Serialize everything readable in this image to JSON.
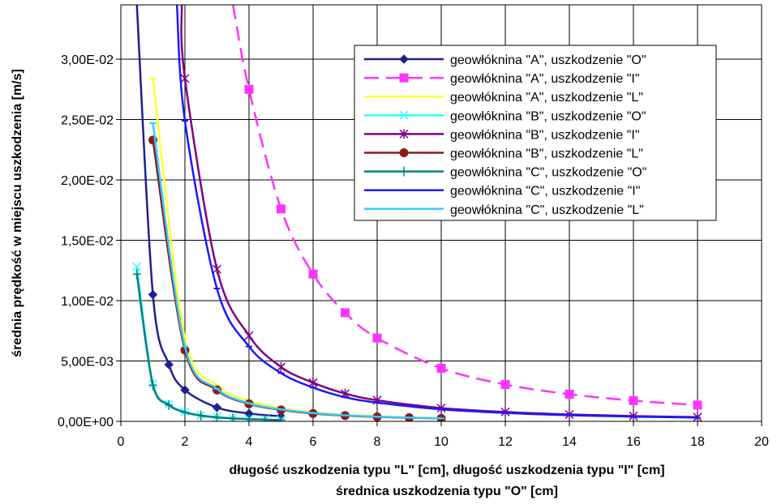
{
  "chart_data": {
    "type": "line",
    "xlabel_line1": "długość uszkodzenia typu \"L\" [cm], długość uszkodzenia typu \"I\" [cm]",
    "xlabel_line2": "średnica uszkodzenia typu \"O\" [cm]",
    "ylabel": "średnia prędkość w miejscu uszkodzenia [m/s]",
    "xlim": [
      0,
      20
    ],
    "ylim": [
      0,
      0.0345
    ],
    "x_ticks": [
      0,
      2,
      4,
      6,
      8,
      10,
      12,
      14,
      16,
      18,
      20
    ],
    "x_tick_labels": [
      "0",
      "2",
      "4",
      "6",
      "8",
      "10",
      "12",
      "14",
      "16",
      "18",
      "20"
    ],
    "y_ticks": [
      0,
      0.005,
      0.01,
      0.015,
      0.02,
      0.025,
      0.03
    ],
    "y_tick_labels": [
      "0,00E+00",
      "5,00E-03",
      "1,00E-02",
      "1,50E-02",
      "2,00E-02",
      "2,50E-02",
      "3,00E-02"
    ],
    "grid": true,
    "legend_position": "top-right",
    "series": [
      {
        "name": "geowłóknina \"A\", uszkodzenie \"O\"",
        "color": "#1f1f8f",
        "dash": "solid",
        "marker": "diamond",
        "x": [
          0.5,
          1,
          1.5,
          2,
          3,
          4,
          5
        ],
        "y": [
          0.0345,
          0.0105,
          0.0047,
          0.0026,
          0.00115,
          0.00065,
          0.00042
        ]
      },
      {
        "name": "geowłóknina \"A\", uszkodzenie \"I\"",
        "color": "#ff33ff",
        "dash": "dashed",
        "marker": "square",
        "x": [
          3.5,
          4,
          5,
          6,
          7,
          8,
          10,
          12,
          14,
          16,
          18
        ],
        "y": [
          0.0345,
          0.0275,
          0.0176,
          0.0122,
          0.009,
          0.0069,
          0.0044,
          0.00305,
          0.00225,
          0.00172,
          0.00135
        ]
      },
      {
        "name": "geowłóknina \"A\", uszkodzenie \"L\"",
        "color": "#ffff33",
        "dash": "solid",
        "marker": "dash",
        "x": [
          1,
          2,
          3,
          4,
          5,
          6,
          7,
          8,
          9,
          10
        ],
        "y": [
          0.0284,
          0.0069,
          0.003,
          0.0017,
          0.0011,
          0.00075,
          0.00055,
          0.00042,
          0.00033,
          0.00027
        ]
      },
      {
        "name": "geowłóknina \"B\", uszkodzenie \"O\"",
        "color": "#33ffff",
        "dash": "solid",
        "marker": "x",
        "x": [
          0.5,
          1,
          1.5,
          2,
          2.5,
          3,
          3.5,
          4,
          4.5,
          5
        ],
        "y": [
          0.0128,
          0.0031,
          0.0014,
          0.00078,
          0.0005,
          0.00035,
          0.00026,
          0.0002,
          0.00015,
          0.00012
        ]
      },
      {
        "name": "geowłóknina \"B\", uszkodzenie \"I\"",
        "color": "#800080",
        "dash": "solid",
        "marker": "star",
        "x": [
          1.9,
          2,
          3,
          4,
          5,
          6,
          7,
          8,
          10,
          12,
          14,
          16,
          18
        ],
        "y": [
          0.0345,
          0.0284,
          0.0126,
          0.0071,
          0.0045,
          0.0032,
          0.0023,
          0.00175,
          0.0011,
          0.00078,
          0.00057,
          0.00044,
          0.00035
        ]
      },
      {
        "name": "geowłóknina \"B\", uszkodzenie \"L\"",
        "color": "#8b1a1a",
        "dash": "solid",
        "marker": "circle",
        "x": [
          1,
          2,
          3,
          4,
          5,
          6,
          7,
          8,
          9,
          10
        ],
        "y": [
          0.0233,
          0.0059,
          0.0026,
          0.00145,
          0.00095,
          0.00065,
          0.00048,
          0.00037,
          0.0003,
          0.00024
        ]
      },
      {
        "name": "geowłóknina \"C\", uszkodzenie \"O\"",
        "color": "#008080",
        "dash": "solid",
        "marker": "plus",
        "x": [
          0.5,
          1,
          1.5,
          2,
          2.5,
          3,
          3.5,
          4,
          4.5,
          5
        ],
        "y": [
          0.0122,
          0.003,
          0.00135,
          0.00075,
          0.00048,
          0.00033,
          0.00024,
          0.00018,
          0.00014,
          0.00011
        ]
      },
      {
        "name": "geowłóknina \"C\", uszkodzenie \"I\"",
        "color": "#1a1aff",
        "dash": "solid",
        "marker": "dash",
        "x": [
          1.75,
          2,
          3,
          4,
          5,
          6,
          7,
          8,
          10,
          12,
          14,
          16,
          18
        ],
        "y": [
          0.0345,
          0.0249,
          0.011,
          0.0062,
          0.004,
          0.0028,
          0.002,
          0.00155,
          0.001,
          0.0007,
          0.00051,
          0.00039,
          0.00031
        ]
      },
      {
        "name": "geowłóknina \"C\", uszkodzenie \"L\"",
        "color": "#33ccff",
        "dash": "solid",
        "marker": "dash",
        "x": [
          1,
          2,
          3,
          4,
          5,
          6,
          7,
          8,
          9,
          10
        ],
        "y": [
          0.0247,
          0.0062,
          0.0027,
          0.0015,
          0.00099,
          0.00069,
          0.0005,
          0.00039,
          0.00031,
          0.00025
        ]
      }
    ]
  }
}
